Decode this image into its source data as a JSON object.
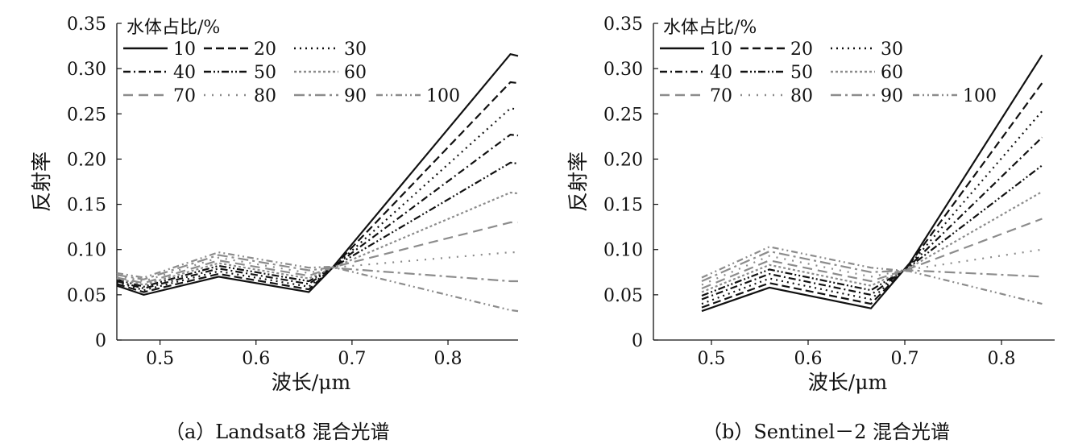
{
  "chart_data": [
    {
      "type": "line",
      "caption": "（a）Landsat8 混合光谱",
      "xlabel": "波长/μm",
      "ylabel": "反射率",
      "xlim": [
        0.455,
        0.873
      ],
      "ylim": [
        0,
        0.35
      ],
      "xticks": [
        0.5,
        0.6,
        0.7,
        0.8
      ],
      "xtick_labels": [
        "0.5",
        "0.6",
        "0.7",
        "0.8"
      ],
      "yticks": [
        0,
        0.05,
        0.1,
        0.15,
        0.2,
        0.25,
        0.3,
        0.35
      ],
      "ytick_labels": [
        "0",
        "0.05",
        "0.10",
        "0.15",
        "0.20",
        "0.25",
        "0.30",
        "0.35"
      ],
      "grid": false,
      "legend": {
        "title": "水体占比/%",
        "position": "top-left",
        "columns": 4
      },
      "x": [
        0.455,
        0.483,
        0.561,
        0.655,
        0.678,
        0.865,
        0.873
      ],
      "series": [
        {
          "name": "10",
          "color": "#111111",
          "dash": "solid",
          "values": [
            0.06,
            0.05,
            0.07,
            0.053,
            0.078,
            0.316,
            0.314
          ]
        },
        {
          "name": "20",
          "color": "#111111",
          "dash": "dash",
          "values": [
            0.062,
            0.053,
            0.073,
            0.056,
            0.078,
            0.285,
            0.284
          ]
        },
        {
          "name": "30",
          "color": "#111111",
          "dash": "dot",
          "values": [
            0.064,
            0.055,
            0.076,
            0.059,
            0.078,
            0.256,
            0.255
          ]
        },
        {
          "name": "40",
          "color": "#111111",
          "dash": "dashdot",
          "values": [
            0.065,
            0.057,
            0.079,
            0.062,
            0.079,
            0.227,
            0.226
          ]
        },
        {
          "name": "50",
          "color": "#111111",
          "dash": "dashdotdot",
          "values": [
            0.067,
            0.059,
            0.082,
            0.065,
            0.079,
            0.196,
            0.195
          ]
        },
        {
          "name": "60",
          "color": "#8c8c8c",
          "dash": "densedot",
          "values": [
            0.068,
            0.061,
            0.085,
            0.068,
            0.079,
            0.163,
            0.162
          ]
        },
        {
          "name": "70",
          "color": "#8c8c8c",
          "dash": "longdash",
          "values": [
            0.069,
            0.063,
            0.088,
            0.071,
            0.08,
            0.13,
            0.13
          ]
        },
        {
          "name": "80",
          "color": "#8c8c8c",
          "dash": "sparsedot",
          "values": [
            0.071,
            0.065,
            0.091,
            0.074,
            0.08,
            0.097,
            0.097
          ]
        },
        {
          "name": "90",
          "color": "#8c8c8c",
          "dash": "longdashdot",
          "values": [
            0.072,
            0.067,
            0.094,
            0.077,
            0.08,
            0.065,
            0.065
          ]
        },
        {
          "name": "100",
          "color": "#8c8c8c",
          "dash": "dashdotdot2",
          "values": [
            0.074,
            0.069,
            0.097,
            0.08,
            0.081,
            0.033,
            0.032
          ]
        }
      ]
    },
    {
      "type": "line",
      "caption": "（b）Sentinel－2 混合光谱",
      "xlabel": "波长/μm",
      "ylabel": "反射率",
      "xlim": [
        0.44,
        0.855
      ],
      "ylim": [
        0,
        0.35
      ],
      "xticks": [
        0.5,
        0.6,
        0.7,
        0.8
      ],
      "xtick_labels": [
        "0.5",
        "0.6",
        "0.7",
        "0.8"
      ],
      "yticks": [
        0,
        0.05,
        0.1,
        0.15,
        0.2,
        0.25,
        0.3,
        0.35
      ],
      "ytick_labels": [
        "0",
        "0.05",
        "0.10",
        "0.15",
        "0.20",
        "0.25",
        "0.30",
        "0.35"
      ],
      "grid": false,
      "legend": {
        "title": "水体占比/%",
        "position": "top-left",
        "columns": 4
      },
      "x": [
        0.49,
        0.56,
        0.665,
        0.705,
        0.842
      ],
      "series": [
        {
          "name": "10",
          "color": "#111111",
          "dash": "solid",
          "values": [
            0.032,
            0.058,
            0.035,
            0.085,
            0.315
          ]
        },
        {
          "name": "20",
          "color": "#111111",
          "dash": "dash",
          "values": [
            0.036,
            0.063,
            0.04,
            0.084,
            0.284
          ]
        },
        {
          "name": "30",
          "color": "#111111",
          "dash": "dot",
          "values": [
            0.04,
            0.068,
            0.045,
            0.083,
            0.253
          ]
        },
        {
          "name": "40",
          "color": "#111111",
          "dash": "dashdot",
          "values": [
            0.045,
            0.073,
            0.05,
            0.082,
            0.224
          ]
        },
        {
          "name": "50",
          "color": "#111111",
          "dash": "dashdotdot",
          "values": [
            0.049,
            0.078,
            0.055,
            0.081,
            0.193
          ]
        },
        {
          "name": "60",
          "color": "#8c8c8c",
          "dash": "densedot",
          "values": [
            0.053,
            0.083,
            0.06,
            0.08,
            0.164
          ]
        },
        {
          "name": "70",
          "color": "#8c8c8c",
          "dash": "longdash",
          "values": [
            0.057,
            0.088,
            0.065,
            0.079,
            0.134
          ]
        },
        {
          "name": "80",
          "color": "#8c8c8c",
          "dash": "sparsedot",
          "values": [
            0.061,
            0.093,
            0.07,
            0.078,
            0.1
          ]
        },
        {
          "name": "90",
          "color": "#8c8c8c",
          "dash": "longdashdot",
          "values": [
            0.065,
            0.098,
            0.075,
            0.077,
            0.07
          ]
        },
        {
          "name": "100",
          "color": "#8c8c8c",
          "dash": "dashdotdot2",
          "values": [
            0.069,
            0.103,
            0.08,
            0.076,
            0.04
          ]
        }
      ]
    }
  ]
}
